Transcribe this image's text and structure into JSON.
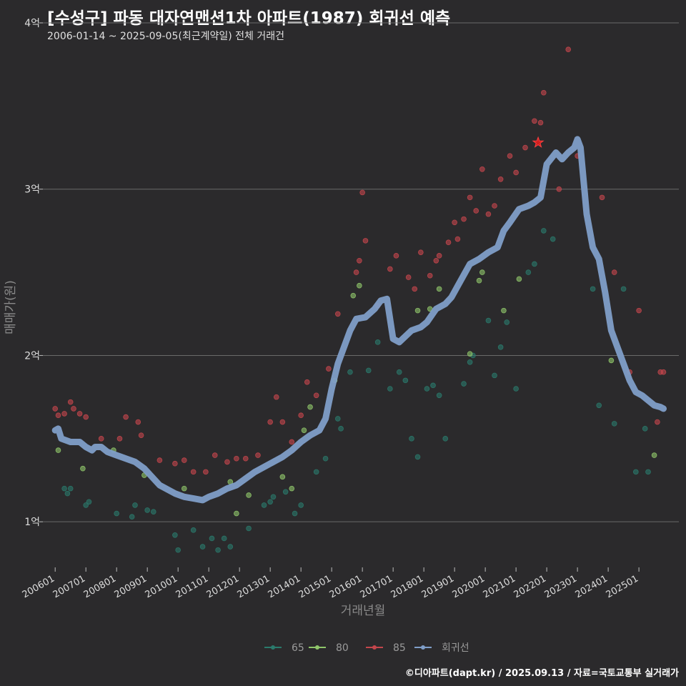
{
  "header": {
    "title": "[수성구] 파동 대자연맨션1차 아파트(1987) 회귀선 예측",
    "subtitle": "2006-01-14 ~ 2025-09-05(최근계약일) 전체 거래건"
  },
  "footer": {
    "credit": "©디아파트(dapt.kr) / 2025.09.13 / 자료=국토교통부 실거래가"
  },
  "colors": {
    "background": "#2b2a2c",
    "grid": "#6a6a6a",
    "s65": "#2a7a6c",
    "s80": "#8fc66a",
    "s85": "#c4464c",
    "regression": "#7f9ec8"
  },
  "chart_data": {
    "type": "scatter",
    "title": "[수성구] 파동 대자연맨션1차 아파트(1987) 회귀선 예측",
    "xlabel": "거래년월",
    "ylabel": "매매가(원)",
    "xlim": [
      2005.6,
      2026.3
    ],
    "ylim": [
      0.7,
      4.0
    ],
    "y_ticks": [
      {
        "v": 1,
        "label": "1억"
      },
      {
        "v": 2,
        "label": "2억"
      },
      {
        "v": 3,
        "label": "3억"
      },
      {
        "v": 4,
        "label": "4억"
      }
    ],
    "x_ticks": [
      "200601",
      "200701",
      "200801",
      "200901",
      "201001",
      "201101",
      "201201",
      "201301",
      "201401",
      "201501",
      "201601",
      "201701",
      "201801",
      "201901",
      "202001",
      "202101",
      "202201",
      "202301",
      "202401",
      "202501"
    ],
    "grid": true,
    "legend_position": "bottom",
    "legend": [
      "65",
      "80",
      "85",
      "회귀선"
    ],
    "series": [
      {
        "name": "65",
        "points": [
          [
            2006.3,
            1.2
          ],
          [
            2006.4,
            1.17
          ],
          [
            2006.5,
            1.2
          ],
          [
            2007.0,
            1.1
          ],
          [
            2007.1,
            1.12
          ],
          [
            2008.0,
            1.05
          ],
          [
            2008.5,
            1.03
          ],
          [
            2008.6,
            1.1
          ],
          [
            2009.0,
            1.07
          ],
          [
            2009.2,
            1.06
          ],
          [
            2009.9,
            0.92
          ],
          [
            2010.0,
            0.83
          ],
          [
            2010.5,
            0.95
          ],
          [
            2010.8,
            0.85
          ],
          [
            2011.1,
            0.9
          ],
          [
            2011.3,
            0.83
          ],
          [
            2011.5,
            0.9
          ],
          [
            2011.7,
            0.85
          ],
          [
            2012.3,
            0.96
          ],
          [
            2012.8,
            1.1
          ],
          [
            2013.0,
            1.12
          ],
          [
            2013.1,
            1.15
          ],
          [
            2013.5,
            1.18
          ],
          [
            2013.8,
            1.05
          ],
          [
            2014.0,
            1.1
          ],
          [
            2014.5,
            1.3
          ],
          [
            2014.8,
            1.38
          ],
          [
            2015.2,
            1.62
          ],
          [
            2015.3,
            1.56
          ],
          [
            2015.6,
            1.9
          ],
          [
            2016.2,
            1.91
          ],
          [
            2016.5,
            2.08
          ],
          [
            2016.9,
            1.8
          ],
          [
            2017.2,
            1.9
          ],
          [
            2017.4,
            1.85
          ],
          [
            2017.6,
            1.5
          ],
          [
            2017.8,
            1.39
          ],
          [
            2018.1,
            1.8
          ],
          [
            2018.3,
            1.82
          ],
          [
            2018.5,
            1.76
          ],
          [
            2018.7,
            1.5
          ],
          [
            2019.3,
            1.83
          ],
          [
            2019.5,
            1.96
          ],
          [
            2019.6,
            2.0
          ],
          [
            2020.1,
            2.21
          ],
          [
            2020.3,
            1.88
          ],
          [
            2020.5,
            2.05
          ],
          [
            2020.7,
            2.2
          ],
          [
            2021.0,
            1.8
          ],
          [
            2021.4,
            2.5
          ],
          [
            2021.6,
            2.55
          ],
          [
            2021.9,
            2.75
          ],
          [
            2022.2,
            2.7
          ],
          [
            2023.5,
            2.4
          ],
          [
            2023.7,
            1.7
          ],
          [
            2024.2,
            1.59
          ],
          [
            2024.5,
            2.4
          ],
          [
            2024.9,
            1.3
          ],
          [
            2025.2,
            1.56
          ],
          [
            2025.3,
            1.3
          ]
        ]
      },
      {
        "name": "80",
        "points": [
          [
            2006.1,
            1.43
          ],
          [
            2006.9,
            1.32
          ],
          [
            2007.9,
            1.43
          ],
          [
            2008.9,
            1.28
          ],
          [
            2010.2,
            1.2
          ],
          [
            2011.7,
            1.24
          ],
          [
            2011.9,
            1.05
          ],
          [
            2012.3,
            1.16
          ],
          [
            2013.4,
            1.27
          ],
          [
            2013.7,
            1.2
          ],
          [
            2014.1,
            1.55
          ],
          [
            2014.3,
            1.69
          ],
          [
            2015.1,
            1.85
          ],
          [
            2015.7,
            2.36
          ],
          [
            2015.9,
            2.42
          ],
          [
            2017.8,
            2.27
          ],
          [
            2018.2,
            2.28
          ],
          [
            2018.5,
            2.4
          ],
          [
            2019.5,
            2.01
          ],
          [
            2019.8,
            2.45
          ],
          [
            2019.9,
            2.5
          ],
          [
            2020.6,
            2.27
          ],
          [
            2021.1,
            2.46
          ],
          [
            2024.1,
            1.97
          ],
          [
            2025.5,
            1.4
          ]
        ]
      },
      {
        "name": "85",
        "points": [
          [
            2006.0,
            1.68
          ],
          [
            2006.1,
            1.64
          ],
          [
            2006.3,
            1.65
          ],
          [
            2006.5,
            1.72
          ],
          [
            2006.6,
            1.68
          ],
          [
            2006.8,
            1.65
          ],
          [
            2007.0,
            1.63
          ],
          [
            2007.5,
            1.5
          ],
          [
            2008.1,
            1.5
          ],
          [
            2008.3,
            1.63
          ],
          [
            2008.7,
            1.6
          ],
          [
            2008.8,
            1.52
          ],
          [
            2009.4,
            1.37
          ],
          [
            2009.9,
            1.35
          ],
          [
            2010.2,
            1.37
          ],
          [
            2010.5,
            1.3
          ],
          [
            2010.9,
            1.3
          ],
          [
            2011.2,
            1.4
          ],
          [
            2011.6,
            1.36
          ],
          [
            2011.9,
            1.38
          ],
          [
            2012.2,
            1.38
          ],
          [
            2012.6,
            1.4
          ],
          [
            2013.0,
            1.6
          ],
          [
            2013.2,
            1.75
          ],
          [
            2013.4,
            1.6
          ],
          [
            2013.7,
            1.48
          ],
          [
            2014.0,
            1.64
          ],
          [
            2014.2,
            1.84
          ],
          [
            2014.5,
            1.76
          ],
          [
            2014.9,
            1.92
          ],
          [
            2015.2,
            2.25
          ],
          [
            2015.8,
            2.5
          ],
          [
            2015.9,
            2.57
          ],
          [
            2016.0,
            2.98
          ],
          [
            2016.1,
            2.69
          ],
          [
            2016.5,
            2.3
          ],
          [
            2016.9,
            2.52
          ],
          [
            2017.1,
            2.6
          ],
          [
            2017.5,
            2.47
          ],
          [
            2017.7,
            2.4
          ],
          [
            2017.9,
            2.62
          ],
          [
            2018.2,
            2.48
          ],
          [
            2018.4,
            2.57
          ],
          [
            2018.5,
            2.6
          ],
          [
            2018.8,
            2.68
          ],
          [
            2019.0,
            2.8
          ],
          [
            2019.1,
            2.7
          ],
          [
            2019.3,
            2.82
          ],
          [
            2019.5,
            2.95
          ],
          [
            2019.7,
            2.87
          ],
          [
            2019.9,
            3.12
          ],
          [
            2020.1,
            2.85
          ],
          [
            2020.3,
            2.9
          ],
          [
            2020.5,
            3.06
          ],
          [
            2020.8,
            3.2
          ],
          [
            2021.0,
            3.1
          ],
          [
            2021.3,
            3.25
          ],
          [
            2021.6,
            3.41
          ],
          [
            2021.8,
            3.4
          ],
          [
            2021.9,
            3.58
          ],
          [
            2022.4,
            3.0
          ],
          [
            2022.7,
            3.84
          ],
          [
            2023.0,
            3.2
          ],
          [
            2023.8,
            2.95
          ],
          [
            2024.2,
            2.5
          ],
          [
            2024.7,
            1.9
          ],
          [
            2025.0,
            2.27
          ],
          [
            2025.6,
            1.6
          ],
          [
            2025.7,
            1.9
          ],
          [
            2025.8,
            1.9
          ]
        ]
      }
    ],
    "star_point": [
      2021.72,
      3.28
    ],
    "regression": {
      "name": "회귀선",
      "x": [
        2006.0,
        2006.1,
        2006.2,
        2006.5,
        2006.8,
        2007.0,
        2007.2,
        2007.3,
        2007.5,
        2007.7,
        2008.0,
        2008.3,
        2008.6,
        2008.9,
        2009.1,
        2009.4,
        2009.6,
        2009.9,
        2010.2,
        2010.5,
        2010.8,
        2011.0,
        2011.3,
        2011.6,
        2011.9,
        2012.2,
        2012.5,
        2012.8,
        2013.1,
        2013.4,
        2013.7,
        2014.0,
        2014.3,
        2014.6,
        2014.8,
        2015.0,
        2015.2,
        2015.4,
        2015.6,
        2015.8,
        2016.1,
        2016.4,
        2016.6,
        2016.8,
        2017.0,
        2017.2,
        2017.6,
        2017.9,
        2018.1,
        2018.4,
        2018.7,
        2018.9,
        2019.2,
        2019.5,
        2019.8,
        2020.1,
        2020.4,
        2020.6,
        2020.8,
        2021.1,
        2021.4,
        2021.6,
        2021.8,
        2022.0,
        2022.3,
        2022.5,
        2022.7,
        2022.9,
        2023.0,
        2023.1,
        2023.3,
        2023.5,
        2023.7,
        2023.9,
        2024.1,
        2024.3,
        2024.5,
        2024.7,
        2024.9,
        2025.1,
        2025.3,
        2025.5,
        2025.7,
        2025.8
      ],
      "y": [
        1.55,
        1.56,
        1.5,
        1.48,
        1.48,
        1.45,
        1.43,
        1.45,
        1.45,
        1.42,
        1.4,
        1.38,
        1.36,
        1.32,
        1.28,
        1.22,
        1.2,
        1.17,
        1.15,
        1.14,
        1.13,
        1.15,
        1.17,
        1.2,
        1.22,
        1.26,
        1.3,
        1.33,
        1.36,
        1.39,
        1.43,
        1.48,
        1.52,
        1.55,
        1.62,
        1.8,
        1.95,
        2.05,
        2.15,
        2.22,
        2.23,
        2.28,
        2.33,
        2.34,
        2.1,
        2.08,
        2.15,
        2.17,
        2.2,
        2.28,
        2.31,
        2.35,
        2.45,
        2.55,
        2.58,
        2.62,
        2.65,
        2.75,
        2.8,
        2.88,
        2.9,
        2.92,
        2.95,
        3.15,
        3.22,
        3.18,
        3.22,
        3.25,
        3.3,
        3.25,
        2.85,
        2.65,
        2.58,
        2.38,
        2.15,
        2.05,
        1.95,
        1.85,
        1.78,
        1.76,
        1.73,
        1.7,
        1.69,
        1.68
      ]
    }
  }
}
